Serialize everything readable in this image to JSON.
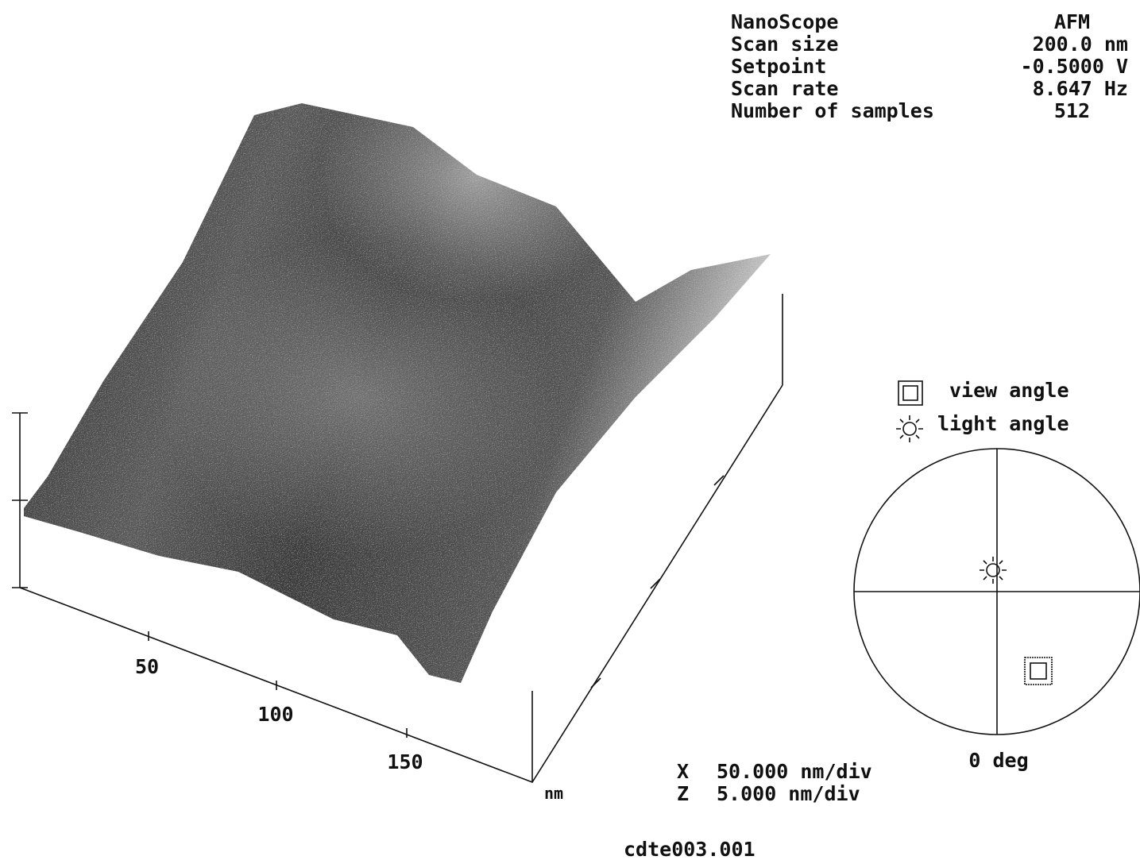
{
  "header": {
    "rows": [
      [
        "NanoScope",
        "AFM"
      ],
      [
        "Scan size",
        "200.0 nm"
      ],
      [
        "Setpoint",
        "-0.5000 V"
      ],
      [
        "Scan rate",
        "8.647 Hz"
      ],
      [
        "Number of samples",
        "512"
      ]
    ]
  },
  "axis": {
    "x_labels": [
      "50",
      "100",
      "150"
    ],
    "unit": "nm"
  },
  "legend": {
    "view": "view angle",
    "light": "light angle",
    "rotation": "0 deg"
  },
  "scale": {
    "x_name": "X",
    "x_value": "50.000 nm/div",
    "z_name": "Z",
    "z_value": "5.000 nm/div"
  },
  "file": "cdte003.001"
}
